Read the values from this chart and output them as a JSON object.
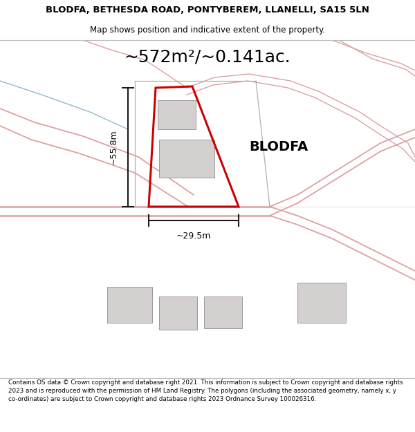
{
  "title_line1": "BLODFA, BETHESDA ROAD, PONTYBEREM, LLANELLI, SA15 5LN",
  "title_line2": "Map shows position and indicative extent of the property.",
  "area_text": "~572m²/~0.141ac.",
  "label_blodfa": "BLODFA",
  "dim_height": "~55.8m",
  "dim_width": "~29.5m",
  "footer_text": "Contains OS data © Crown copyright and database right 2021. This information is subject to Crown copyright and database rights 2023 and is reproduced with the permission of HM Land Registry. The polygons (including the associated geometry, namely x, y co-ordinates) are subject to Crown copyright and database rights 2023 Ordnance Survey 100026316.",
  "map_bg": "#f8f4f4",
  "road_color_pink": "#dda0a0",
  "road_color_gray": "#b0b0b0",
  "plot_outline_color": "#cc0000",
  "building_fill": "#d4d0d0",
  "building_edge": "#999999",
  "stream_color": "#90b8cc",
  "dim_line_color": "#1a1a1a",
  "header_bg": "#ffffff",
  "footer_bg": "#ffffff",
  "title_fontsize": 9.5,
  "subtitle_fontsize": 8.5,
  "area_fontsize": 18,
  "label_fontsize": 14,
  "dim_fontsize": 9,
  "footer_fontsize": 6.3
}
